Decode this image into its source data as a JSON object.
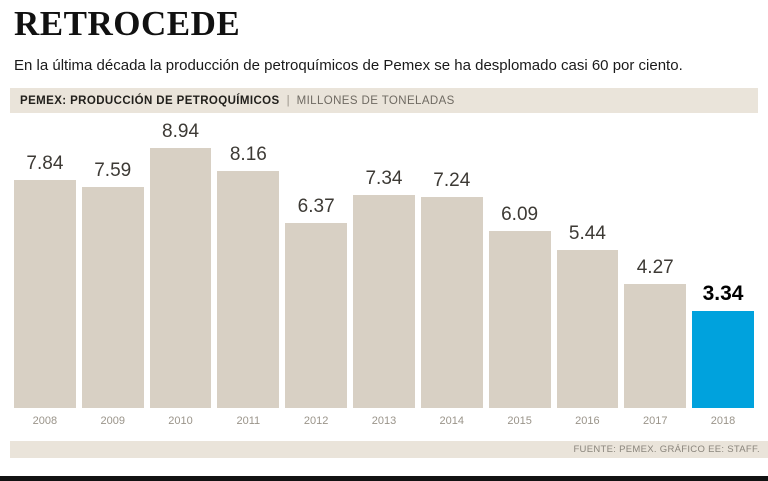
{
  "title": "RETROCEDE",
  "subtitle": "En la última década la producción de petroquímicos de Pemex se ha desplomado casi 60 por ciento.",
  "chart_header": {
    "label": "PEMEX: PRODUCCIÓN DE PETROQUÍMICOS",
    "separator": "|",
    "units": "MILLONES DE TONELADAS"
  },
  "footer": {
    "source": "FUENTE: PEMEX. GRÁFICO EE: STAFF."
  },
  "colors": {
    "bar": "#d8d0c4",
    "highlight": "#00a2dd",
    "strip": "#eae4da",
    "value_label": "#3d3a35",
    "year_label": "#9a948a"
  },
  "chart_data": {
    "type": "bar",
    "title": "PEMEX: PRODUCCIÓN DE PETROQUÍMICOS",
    "ylabel": "MILLONES DE TONELADAS",
    "categories": [
      "2008",
      "2009",
      "2010",
      "2011",
      "2012",
      "2013",
      "2014",
      "2015",
      "2016",
      "2017",
      "2018"
    ],
    "values": [
      7.84,
      7.59,
      8.94,
      8.16,
      6.37,
      7.34,
      7.24,
      6.09,
      5.44,
      4.27,
      3.34
    ],
    "highlight_index": 10,
    "ylim": [
      0,
      8.94
    ],
    "grid": false,
    "legend": "none",
    "value_labels": "above-bars"
  }
}
